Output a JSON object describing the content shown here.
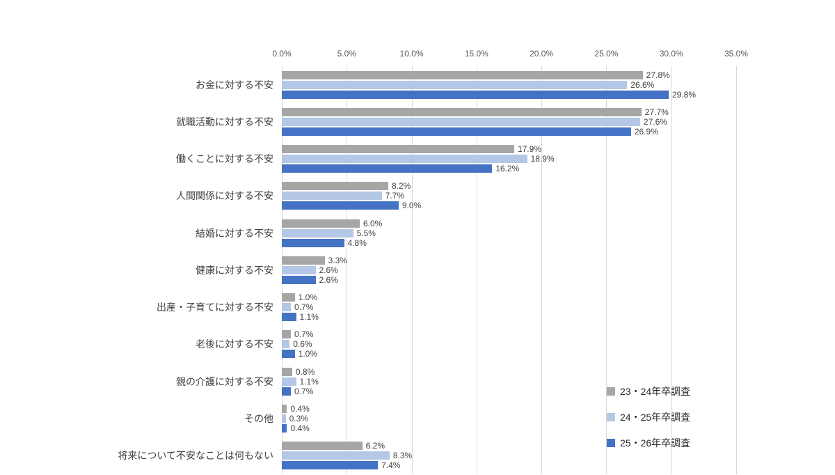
{
  "chart_data": {
    "type": "bar",
    "orientation": "horizontal",
    "title": "",
    "xlabel": "",
    "ylabel": "",
    "grid": true,
    "legend_position": "inside-right-middle",
    "value_label_format": "one_decimal_percent",
    "categories": [
      "お金に対する不安",
      "就職活動に対する不安",
      "働くことに対する不安",
      "人間関係に対する不安",
      "結婚に対する不安",
      "健康に対する不安",
      "出産・子育てに対する不安",
      "老後に対する不安",
      "親の介護に対する不安",
      "その他",
      "将来について不安なことは何もない"
    ],
    "series": [
      {
        "name": "23・24年卒調査",
        "color": "#A6A6A6",
        "values": [
          27.8,
          27.7,
          17.9,
          8.2,
          6.0,
          3.3,
          1.0,
          0.7,
          0.8,
          0.4,
          6.2
        ]
      },
      {
        "name": "24・25年卒調査",
        "color": "#B4C7E7",
        "values": [
          26.6,
          27.6,
          18.9,
          7.7,
          5.5,
          2.6,
          0.7,
          0.6,
          1.1,
          0.3,
          8.3
        ]
      },
      {
        "name": "25・26年卒調査",
        "color": "#4472C4",
        "values": [
          29.8,
          26.9,
          16.2,
          9.0,
          4.8,
          2.6,
          1.1,
          1.0,
          0.7,
          0.4,
          7.4
        ]
      }
    ],
    "x_axis": {
      "min": 0,
      "max": 35,
      "tick_labels": [
        "0.0%",
        "5.0%",
        "10.0%",
        "15.0%",
        "20.0%",
        "25.0%",
        "30.0%",
        "35.0%"
      ]
    }
  }
}
